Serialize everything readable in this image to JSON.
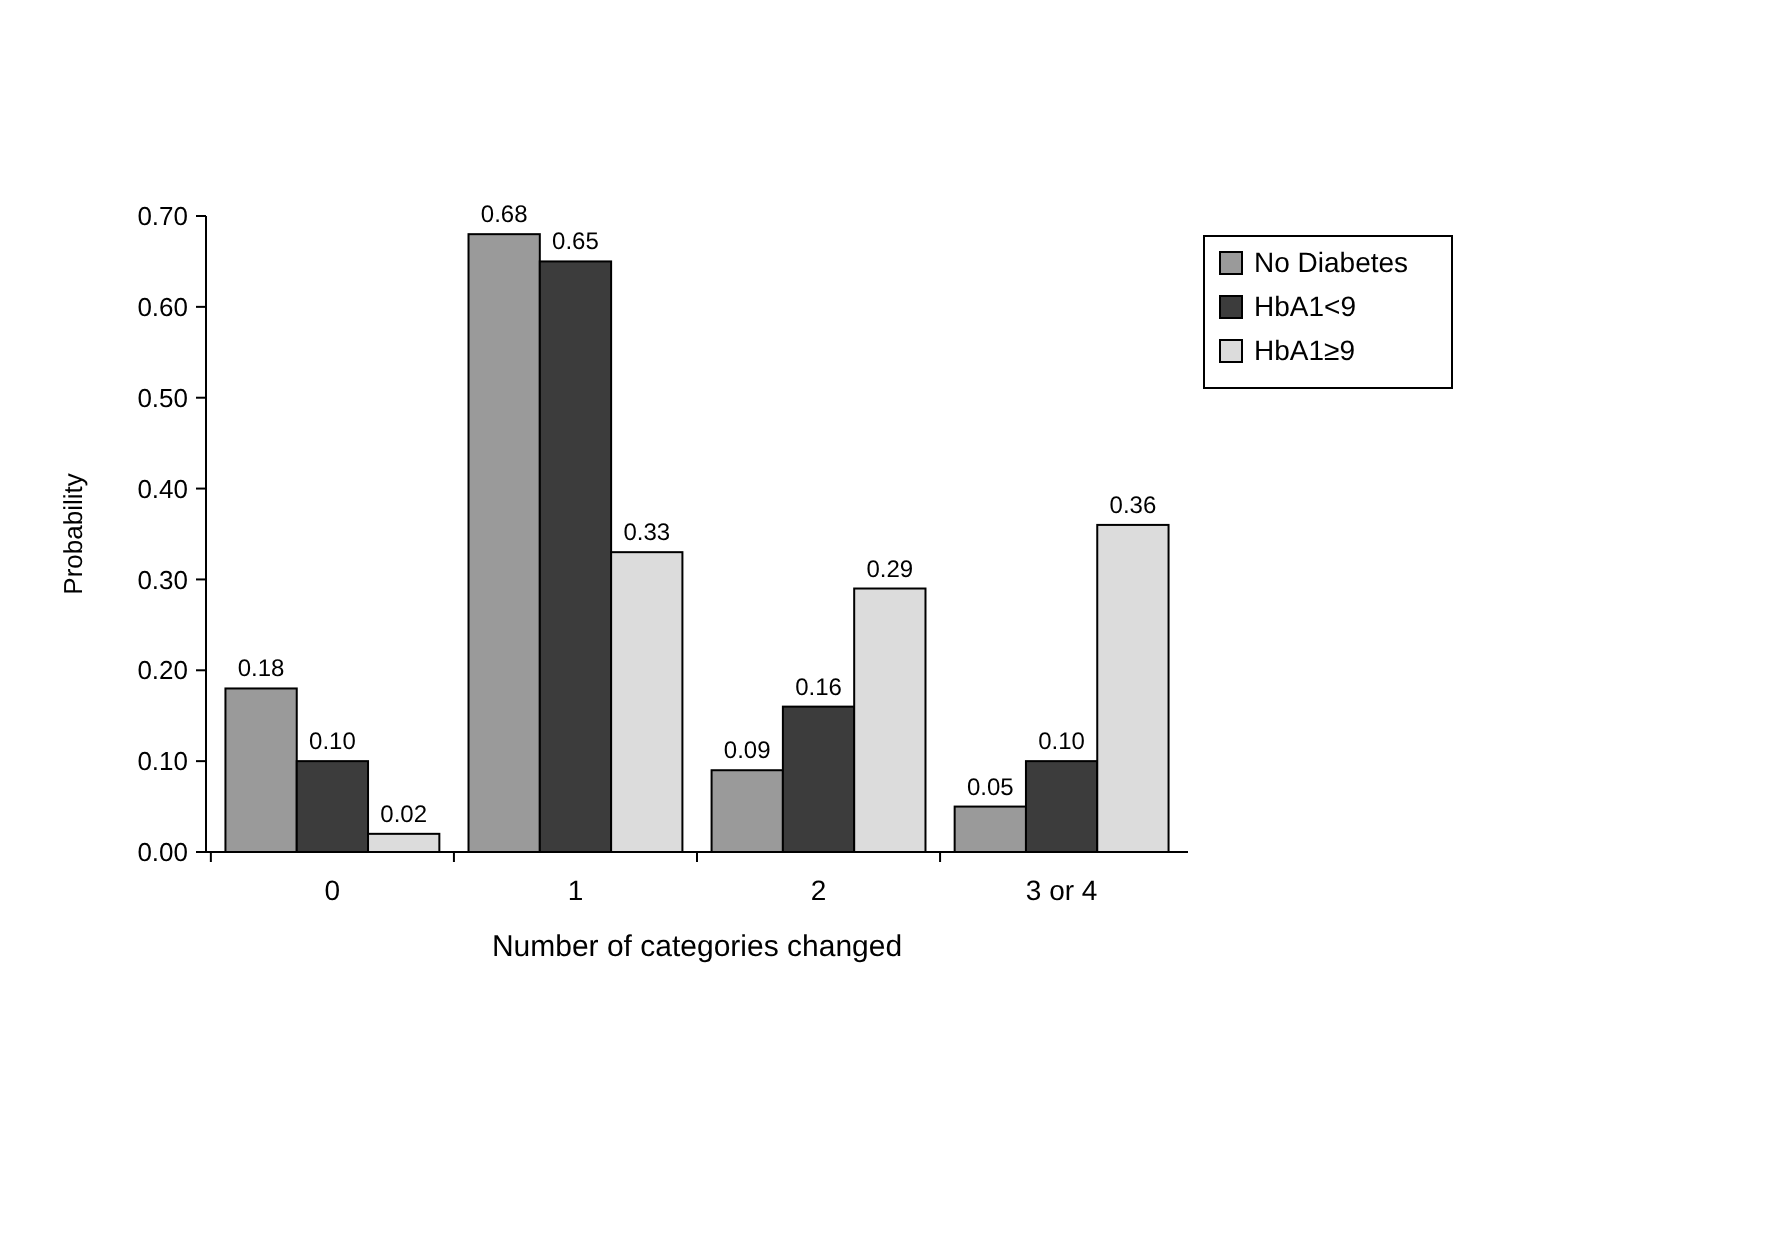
{
  "chart_data": {
    "type": "bar",
    "xlabel": "Number of categories changed",
    "ylabel": "Probability",
    "categories": [
      "0",
      "1",
      "2",
      "3 or 4"
    ],
    "series": [
      {
        "name": "No Diabetes",
        "color": "#9a9a9a",
        "values": [
          0.18,
          0.68,
          0.09,
          0.05
        ],
        "value_labels": [
          "0.18",
          "0.68",
          "0.09",
          "0.05"
        ]
      },
      {
        "name": "HbA1<9",
        "color": "#3c3c3c",
        "values": [
          0.1,
          0.65,
          0.16,
          0.1
        ],
        "value_labels": [
          "0.10",
          "0.65",
          "0.16",
          "0.10"
        ]
      },
      {
        "name": "HbA1≥9",
        "color": "#dcdcdc",
        "values": [
          0.02,
          0.33,
          0.29,
          0.36
        ],
        "value_labels": [
          "0.02",
          "0.33",
          "0.29",
          "0.36"
        ]
      }
    ],
    "ylim": [
      0,
      0.7
    ],
    "yticks": [
      {
        "value": 0,
        "label": "0.00"
      },
      {
        "value": 0.1,
        "label": "0.10"
      },
      {
        "value": 0.2,
        "label": "0.20"
      },
      {
        "value": 0.3,
        "label": "0.30"
      },
      {
        "value": 0.4,
        "label": "0.40"
      },
      {
        "value": 0.5,
        "label": "0.50"
      },
      {
        "value": 0.6,
        "label": "0.60"
      },
      {
        "value": 0.7,
        "label": "0.70"
      }
    ],
    "grid": false,
    "legend": "top right"
  }
}
